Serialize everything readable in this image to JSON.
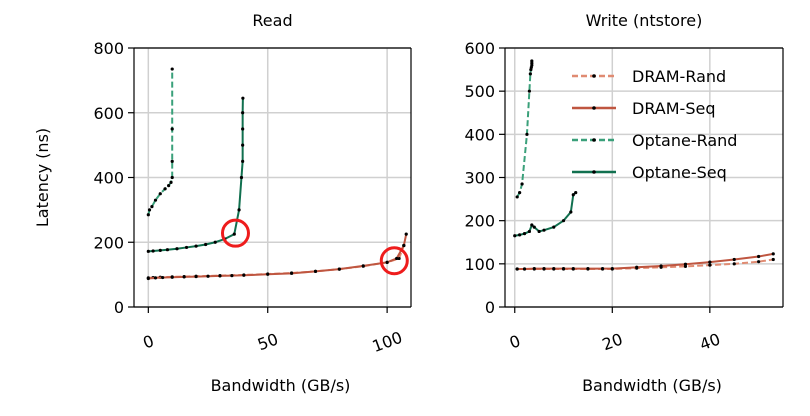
{
  "colors": {
    "dram_rand": "#e08b72",
    "dram_seq": "#bf5640",
    "optane_rand": "#3aa07a",
    "optane_seq": "#11704f",
    "marker": "#000000",
    "grid": "#d0d0d0",
    "highlight_circle": "#ee1c1c"
  },
  "chart_data": [
    {
      "type": "line",
      "title": "Read",
      "xlabel": "Bandwidth (GB/s)",
      "ylabel": "Latency (ns)",
      "xlim": [
        -6,
        110
      ],
      "ylim": [
        0,
        800
      ],
      "xticks": [
        0,
        50,
        100
      ],
      "yticks": [
        0,
        200,
        400,
        600,
        800
      ],
      "grid": true,
      "series": [
        {
          "name": "DRAM-Rand",
          "style": "dashed",
          "x": [
            0,
            2,
            5,
            10,
            15,
            20,
            30,
            40,
            50,
            60,
            70,
            80,
            90,
            100,
            105,
            107
          ],
          "y": [
            90,
            91,
            92,
            93,
            94,
            95,
            97,
            99,
            102,
            105,
            110,
            117,
            126,
            138,
            150,
            190
          ]
        },
        {
          "name": "DRAM-Seq",
          "style": "solid",
          "x": [
            0,
            3,
            6,
            10,
            15,
            20,
            25,
            30,
            35,
            40,
            50,
            60,
            70,
            80,
            90,
            100,
            104,
            107,
            108
          ],
          "y": [
            88,
            90,
            91,
            92,
            93,
            94,
            95,
            96,
            97,
            98,
            101,
            104,
            110,
            117,
            127,
            138,
            150,
            190,
            225
          ]
        },
        {
          "name": "Optane-Rand",
          "style": "dashed",
          "x": [
            0,
            0.5,
            1.5,
            3,
            5,
            7,
            8.5,
            9.5,
            10,
            10,
            10,
            10
          ],
          "y": [
            285,
            300,
            310,
            330,
            350,
            365,
            375,
            385,
            400,
            450,
            550,
            735
          ]
        },
        {
          "name": "Optane-Seq",
          "style": "solid",
          "x": [
            0,
            2,
            5,
            8,
            12,
            16,
            20,
            24,
            28,
            32,
            36,
            38,
            39,
            39.5,
            39.5,
            39.5,
            39.5,
            39.6
          ],
          "y": [
            172,
            173,
            175,
            177,
            180,
            184,
            188,
            193,
            200,
            210,
            225,
            300,
            400,
            450,
            500,
            550,
            600,
            645
          ]
        }
      ],
      "annotations": [
        {
          "type": "circle",
          "x": 36.5,
          "y": 228
        },
        {
          "type": "circle",
          "x": 103,
          "y": 143
        }
      ]
    },
    {
      "type": "line",
      "title": "Write (ntstore)",
      "xlabel": "Bandwidth (GB/s)",
      "ylabel": "",
      "xlim": [
        -2,
        55
      ],
      "ylim": [
        0,
        600
      ],
      "xticks": [
        0,
        20,
        40
      ],
      "yticks": [
        0,
        100,
        200,
        300,
        400,
        500,
        600
      ],
      "grid": true,
      "legend_position": "top-right",
      "series": [
        {
          "name": "DRAM-Rand",
          "style": "dashed",
          "x": [
            0.5,
            2,
            4,
            6,
            8,
            10,
            12,
            15,
            18,
            20,
            25,
            30,
            35,
            40,
            45,
            50,
            53
          ],
          "y": [
            88,
            88,
            88,
            88,
            88,
            88,
            88,
            88,
            88,
            88,
            90,
            92,
            94,
            97,
            100,
            105,
            110
          ]
        },
        {
          "name": "DRAM-Seq",
          "style": "solid",
          "x": [
            0.5,
            2,
            4,
            6,
            8,
            10,
            12,
            15,
            18,
            20,
            25,
            30,
            35,
            40,
            45,
            50,
            53
          ],
          "y": [
            88,
            88,
            89,
            89,
            89,
            89,
            89,
            89,
            89,
            89,
            92,
            95,
            99,
            104,
            110,
            117,
            123
          ]
        },
        {
          "name": "Optane-Rand",
          "style": "dashed",
          "x": [
            0.5,
            1,
            1.5,
            2.5,
            3,
            3.2,
            3.3,
            3.4,
            3.5,
            3.5,
            3.5
          ],
          "y": [
            255,
            265,
            285,
            400,
            500,
            540,
            550,
            555,
            560,
            565,
            570
          ]
        },
        {
          "name": "Optane-Seq",
          "style": "solid",
          "x": [
            0,
            1,
            2,
            3,
            3.5,
            4,
            5,
            6,
            8,
            10,
            11.5,
            12,
            12.5
          ],
          "y": [
            165,
            167,
            170,
            175,
            190,
            185,
            175,
            178,
            185,
            200,
            220,
            260,
            265
          ]
        }
      ],
      "annotations": []
    }
  ]
}
